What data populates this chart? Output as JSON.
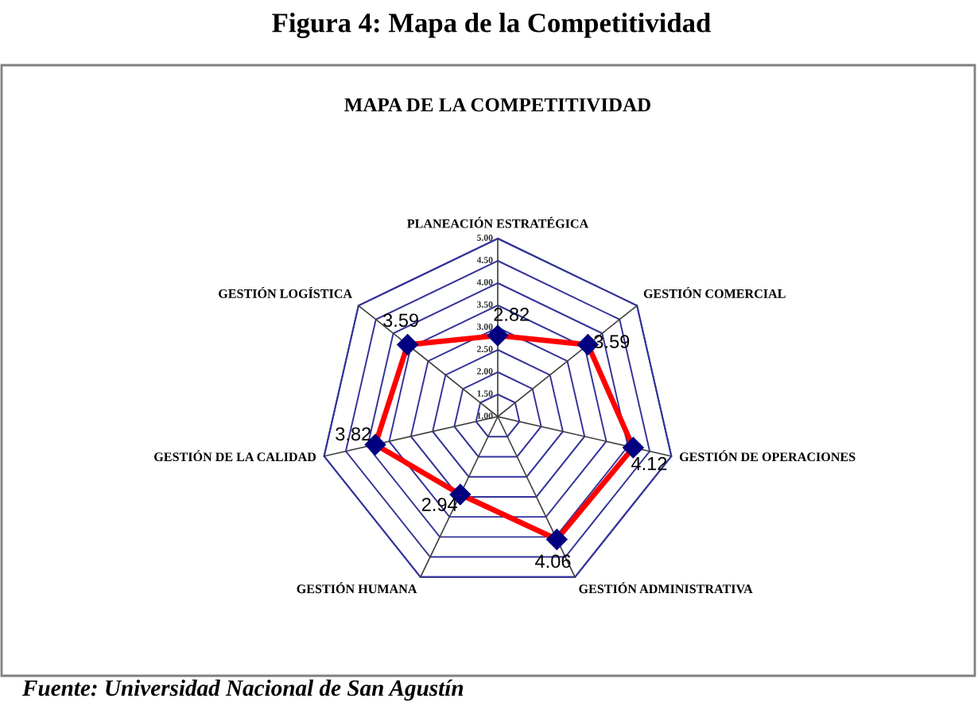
{
  "chart_data": {
    "type": "radar",
    "title": "Figura 4: Mapa de la Competitividad",
    "subtitle": "MAPA DE LA COMPETITIVIDAD",
    "annotations": [
      "Fuente: Universidad Nacional de San Agustín"
    ],
    "categories": [
      "PLANEACIÓN ESTRATÉGICA",
      "GESTIÓN COMERCIAL",
      "GESTIÓN DE OPERACIONES",
      "GESTIÓN ADMINISTRATIVA",
      "GESTIÓN HUMANA",
      "GESTIÓN DE LA CALIDAD",
      "GESTIÓN LOGÍSTICA"
    ],
    "ylim": [
      1,
      5
    ],
    "yticks": [
      {
        "value": 1,
        "label": "1.00"
      },
      {
        "value": 1.5,
        "label": "1.50"
      },
      {
        "value": 2,
        "label": "2.00"
      },
      {
        "value": 2.5,
        "label": "2.50"
      },
      {
        "value": 3,
        "label": "3.00"
      },
      {
        "value": 3.5,
        "label": "3.50"
      },
      {
        "value": 4,
        "label": "4.00"
      },
      {
        "value": 4.5,
        "label": "4.50"
      },
      {
        "value": 5,
        "label": "5.00"
      }
    ],
    "grid": true,
    "marker": "diamond",
    "line_style": "solid",
    "data_labels": true,
    "series": [
      {
        "color": "#ff0000",
        "colors": [
          "#000080",
          "#000080",
          "#000080",
          "#000080",
          "#000080",
          "#000080",
          "#000080"
        ],
        "values": [
          2.82,
          3.59,
          4.12,
          4.06,
          2.94,
          3.82,
          3.59
        ]
      }
    ]
  }
}
